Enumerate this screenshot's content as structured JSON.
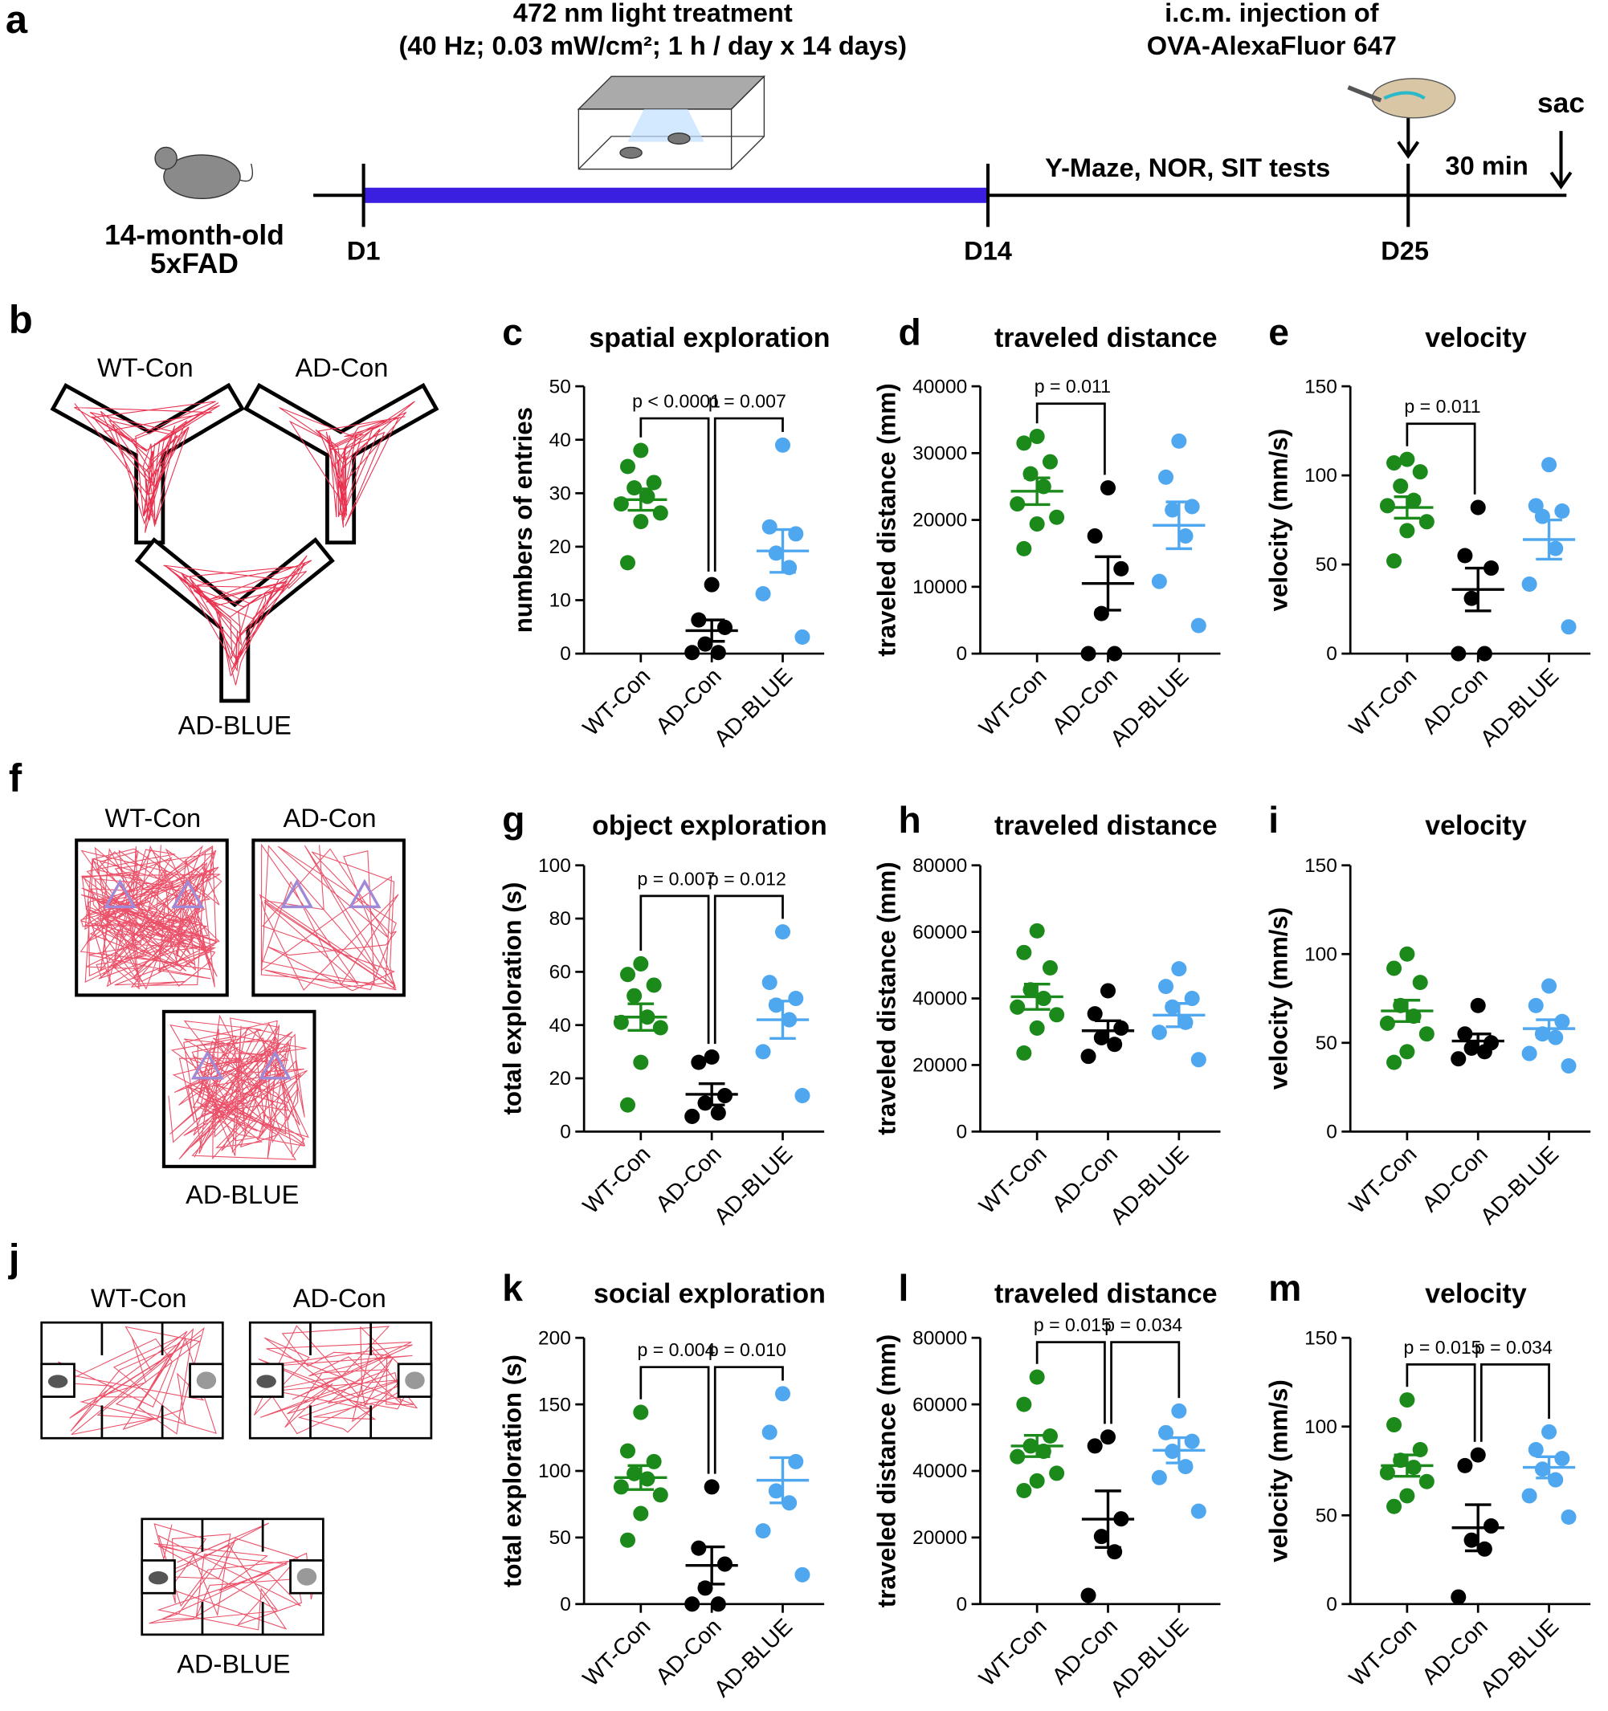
{
  "figure": {
    "panel_a": {
      "label": "a",
      "light": [
        "472 nm light treatment",
        "(40 Hz; 0.03 mW/cm²; 1 h / day x 14 days)"
      ],
      "injection": [
        "i.c.m. injection of",
        "OVA-AlexaFluor 647"
      ],
      "mouse": [
        "14-month-old",
        "5xFAD"
      ],
      "days": [
        "D1",
        "D14",
        "D25"
      ],
      "tests": "Y-Maze, NOR, SIT tests",
      "interval": "30 min",
      "end": "sac"
    },
    "panel_b": {
      "label": "b",
      "groups": [
        "WT-Con",
        "AD-Con",
        "AD-BLUE"
      ]
    },
    "panel_f": {
      "label": "f",
      "groups": [
        "WT-Con",
        "AD-Con",
        "AD-BLUE"
      ]
    },
    "panel_j": {
      "label": "j",
      "groups": [
        "WT-Con",
        "AD-Con",
        "AD-BLUE"
      ]
    }
  },
  "chart_data": [
    {
      "type": "dot",
      "panel": "c",
      "title": "spatial exploration",
      "ylabel": "numbers of entries",
      "categories": [
        "WT-Con",
        "AD-Con",
        "AD-BLUE"
      ],
      "colors": [
        "#1b8a1b",
        "#000000",
        "#4fa8ef"
      ],
      "points": [
        [
          38,
          35,
          32,
          31,
          29.4,
          28,
          26.3,
          24.7,
          17
        ],
        [
          12.9,
          6.3,
          4.9,
          1.8,
          0.2,
          0.2
        ],
        [
          39,
          23.7,
          22.4,
          18.8,
          16.1,
          11.2,
          3.1
        ]
      ],
      "means": [
        28.8,
        4.3,
        19.2
      ],
      "sems": [
        2,
        2,
        4
      ],
      "ylim": [
        0,
        50
      ],
      "yticks": [
        0,
        10,
        20,
        30,
        40,
        50
      ],
      "comparisons": [
        {
          "label": "p < 0.0001",
          "between": [
            0,
            1
          ],
          "at": 44
        },
        {
          "label": "p = 0.007",
          "between": [
            1,
            2
          ],
          "at": 44
        }
      ]
    },
    {
      "type": "dot",
      "panel": "d",
      "title": "traveled distance",
      "ylabel": "traveled distance (mm)",
      "categories": [
        "WT-Con",
        "AD-Con",
        "AD-BLUE"
      ],
      "colors": [
        "#1b8a1b",
        "#000000",
        "#4fa8ef"
      ],
      "points": [
        [
          32500,
          31500,
          28700,
          26900,
          25000,
          22400,
          20400,
          19400,
          15700
        ],
        [
          24800,
          17600,
          12700,
          6000,
          0,
          0
        ],
        [
          31800,
          26400,
          22000,
          21500,
          17600,
          10800,
          4200
        ]
      ],
      "means": [
        24300,
        10500,
        19200
      ],
      "sems": [
        2000,
        4000,
        3500
      ],
      "ylim": [
        0,
        40000
      ],
      "yticks": [
        0,
        10000,
        20000,
        30000,
        40000
      ],
      "comparisons": [
        {
          "label": "p = 0.011",
          "between": [
            0,
            1
          ],
          "at": 37400
        }
      ]
    },
    {
      "type": "dot",
      "panel": "e",
      "title": "velocity",
      "ylabel": "velocity (mm/s)",
      "categories": [
        "WT-Con",
        "AD-Con",
        "AD-BLUE"
      ],
      "colors": [
        "#1b8a1b",
        "#000000",
        "#4fa8ef"
      ],
      "points": [
        [
          109,
          107,
          102,
          94,
          86,
          83,
          74,
          69,
          52
        ],
        [
          82,
          55,
          48,
          31,
          0,
          0
        ],
        [
          106,
          83,
          80,
          77,
          59,
          39,
          15
        ]
      ],
      "means": [
        82,
        36,
        64
      ],
      "sems": [
        6,
        12,
        11
      ],
      "ylim": [
        0,
        150
      ],
      "yticks": [
        0,
        50,
        100,
        150
      ],
      "comparisons": [
        {
          "label": "p = 0.011",
          "between": [
            0,
            1
          ],
          "at": 129
        }
      ]
    },
    {
      "type": "dot",
      "panel": "g",
      "title": "object exploration",
      "ylabel": "total exploration (s)",
      "categories": [
        "WT-Con",
        "AD-Con",
        "AD-BLUE"
      ],
      "colors": [
        "#1b8a1b",
        "#000000",
        "#4fa8ef"
      ],
      "points": [
        [
          63,
          59,
          55,
          51,
          43,
          41,
          39,
          26,
          10
        ],
        [
          28,
          26,
          13.5,
          10.7,
          7,
          5.7
        ],
        [
          75,
          56,
          50,
          47.5,
          42,
          30,
          13.5
        ]
      ],
      "means": [
        43,
        14,
        42
      ],
      "sems": [
        5,
        4,
        7
      ],
      "ylim": [
        0,
        100
      ],
      "yticks": [
        0,
        20,
        40,
        60,
        80,
        100
      ],
      "comparisons": [
        {
          "label": "p = 0.007",
          "between": [
            0,
            1
          ],
          "at": 88.5
        },
        {
          "label": "p = 0.012",
          "between": [
            1,
            2
          ],
          "at": 88.5
        }
      ]
    },
    {
      "type": "dot",
      "panel": "h",
      "title": "traveled distance",
      "ylabel": "traveled distance (mm)",
      "categories": [
        "WT-Con",
        "AD-Con",
        "AD-BLUE"
      ],
      "colors": [
        "#1b8a1b",
        "#000000",
        "#4fa8ef"
      ],
      "points": [
        [
          60300,
          53800,
          49200,
          42600,
          40000,
          37400,
          35100,
          31100,
          23600
        ],
        [
          42300,
          35400,
          31100,
          28200,
          26200,
          22600
        ],
        [
          48900,
          43600,
          40000,
          37400,
          32800,
          29800,
          21600
        ]
      ],
      "means": [
        40500,
        30300,
        35000
      ],
      "sems": [
        3800,
        3000,
        3500
      ],
      "ylim": [
        0,
        80000
      ],
      "yticks": [
        0,
        20000,
        40000,
        60000,
        80000
      ],
      "comparisons": []
    },
    {
      "type": "dot",
      "panel": "i",
      "title": "velocity",
      "ylabel": "velocity (mm/s)",
      "categories": [
        "WT-Con",
        "AD-Con",
        "AD-BLUE"
      ],
      "colors": [
        "#1b8a1b",
        "#000000",
        "#4fa8ef"
      ],
      "points": [
        [
          100,
          92,
          84,
          71,
          65,
          61,
          55,
          45,
          39
        ],
        [
          71,
          55,
          50,
          47,
          45,
          41
        ],
        [
          82,
          71,
          62,
          55,
          53,
          44,
          37
        ]
      ],
      "means": [
        68,
        51,
        58
      ],
      "sems": [
        6,
        4,
        5
      ],
      "ylim": [
        0,
        150
      ],
      "yticks": [
        0,
        50,
        100,
        150
      ],
      "comparisons": []
    },
    {
      "type": "dot",
      "panel": "k",
      "title": "social exploration",
      "ylabel": "total exploration (s)",
      "categories": [
        "WT-Con",
        "AD-Con",
        "AD-BLUE"
      ],
      "colors": [
        "#1b8a1b",
        "#000000",
        "#4fa8ef"
      ],
      "points": [
        [
          144,
          115,
          107,
          98,
          94,
          88,
          82,
          68,
          48
        ],
        [
          88,
          42,
          30,
          12,
          0,
          0
        ],
        [
          158,
          129,
          107,
          85,
          76,
          55,
          22
        ]
      ],
      "means": [
        95,
        29,
        93
      ],
      "sems": [
        9,
        14,
        17
      ],
      "ylim": [
        0,
        200
      ],
      "yticks": [
        0,
        50,
        100,
        150,
        200
      ],
      "comparisons": [
        {
          "label": "p = 0.004",
          "between": [
            0,
            1
          ],
          "at": 178
        },
        {
          "label": "p = 0.010",
          "between": [
            1,
            2
          ],
          "at": 178
        }
      ]
    },
    {
      "type": "dot",
      "panel": "l",
      "title": "traveled distance",
      "ylabel": "traveled distance (mm)",
      "categories": [
        "WT-Con",
        "AD-Con",
        "AD-BLUE"
      ],
      "colors": [
        "#1b8a1b",
        "#000000",
        "#4fa8ef"
      ],
      "points": [
        [
          68200,
          60000,
          50500,
          47500,
          45900,
          44300,
          39300,
          37000,
          34100
        ],
        [
          50200,
          47500,
          25600,
          20300,
          15700,
          2600
        ],
        [
          58000,
          51500,
          48900,
          45900,
          41300,
          38000,
          27900
        ]
      ],
      "means": [
        47500,
        25500,
        46200
      ],
      "sems": [
        3200,
        8500,
        3800
      ],
      "ylim": [
        0,
        80000
      ],
      "yticks": [
        0,
        20000,
        40000,
        60000,
        80000
      ],
      "comparisons": [
        {
          "label": "p = 0.015",
          "between": [
            0,
            1
          ],
          "at": 78700
        },
        {
          "label": "p = 0.034",
          "between": [
            1,
            2
          ],
          "at": 78700
        }
      ]
    },
    {
      "type": "dot",
      "panel": "m",
      "title": "velocity",
      "ylabel": "velocity (mm/s)",
      "categories": [
        "WT-Con",
        "AD-Con",
        "AD-BLUE"
      ],
      "colors": [
        "#1b8a1b",
        "#000000",
        "#4fa8ef"
      ],
      "points": [
        [
          115,
          101,
          87,
          81,
          77,
          74,
          69,
          61,
          55
        ],
        [
          84,
          78,
          44,
          36,
          31,
          4
        ],
        [
          97,
          87,
          82,
          76,
          70,
          61,
          49
        ]
      ],
      "means": [
        78,
        43,
        77
      ],
      "sems": [
        6,
        13,
        6
      ],
      "ylim": [
        0,
        150
      ],
      "yticks": [
        0,
        50,
        100,
        150
      ],
      "comparisons": [
        {
          "label": "p = 0.015",
          "between": [
            0,
            1
          ],
          "at": 135
        },
        {
          "label": "p = 0.034",
          "between": [
            1,
            2
          ],
          "at": 135
        }
      ]
    }
  ]
}
